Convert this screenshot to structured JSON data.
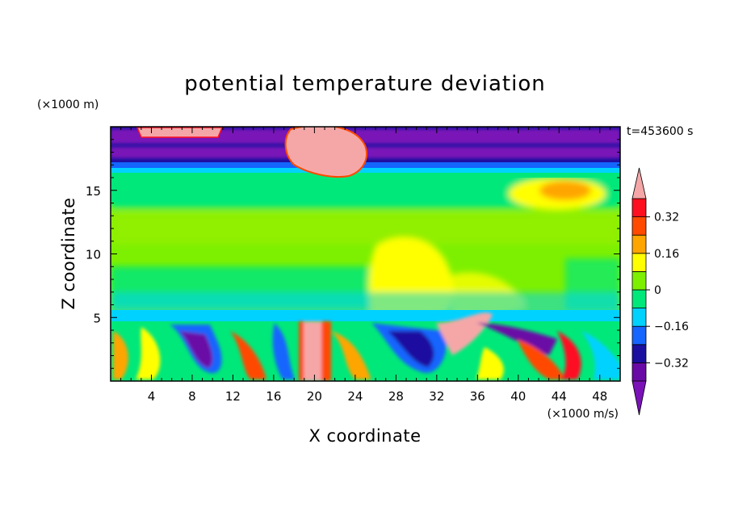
{
  "chart_data": {
    "type": "heatmap",
    "title": "potential temperature deviation",
    "xlabel": "X coordinate",
    "ylabel": "Z coordinate",
    "x_unit": "(×1000 m/s)",
    "y_unit": "(×1000 m)",
    "time_label": "t=453600 s",
    "xlim": [
      0,
      50
    ],
    "ylim": [
      0,
      20
    ],
    "x_ticks": [
      4,
      8,
      12,
      16,
      20,
      24,
      28,
      32,
      36,
      40,
      44,
      48
    ],
    "y_ticks": [
      5,
      10,
      15
    ],
    "x_tick_labels": [
      "4",
      "8",
      "12",
      "16",
      "20",
      "24",
      "28",
      "32",
      "36",
      "40",
      "44",
      "48"
    ],
    "y_tick_labels": [
      "5",
      "10",
      "15"
    ],
    "colorbar": {
      "levels": [
        -0.4,
        -0.32,
        -0.24,
        -0.16,
        -0.08,
        0,
        0.08,
        0.16,
        0.24,
        0.32,
        0.4
      ],
      "labels": [
        "0.32",
        "0.16",
        "0",
        "−0.16",
        "−0.32"
      ],
      "label_values": [
        0.32,
        0.16,
        0,
        -0.16,
        -0.32
      ],
      "colors": [
        "#6a0aa6",
        "#1b0fa0",
        "#1565ff",
        "#00d2ff",
        "#00e87a",
        "#7cf000",
        "#ffff00",
        "#ffa500",
        "#ff4a00",
        "#ff1020"
      ],
      "under_color": "#7a12b8",
      "over_color": "#f5a7a7"
    }
  }
}
